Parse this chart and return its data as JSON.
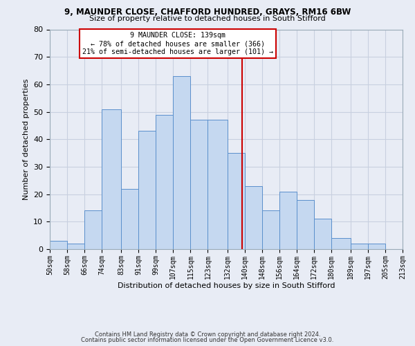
{
  "title1": "9, MAUNDER CLOSE, CHAFFORD HUNDRED, GRAYS, RM16 6BW",
  "title2": "Size of property relative to detached houses in South Stifford",
  "xlabel": "Distribution of detached houses by size in South Stifford",
  "ylabel": "Number of detached properties",
  "bin_edges": [
    50,
    58,
    66,
    74,
    83,
    91,
    99,
    107,
    115,
    123,
    132,
    140,
    148,
    156,
    164,
    172,
    180,
    189,
    197,
    205,
    213
  ],
  "bar_heights": [
    3,
    2,
    14,
    51,
    22,
    43,
    49,
    63,
    47,
    47,
    35,
    23,
    14,
    21,
    18,
    11,
    4,
    2,
    2,
    0
  ],
  "bar_color": "#c5d8f0",
  "bar_edge_color": "#5a8fcc",
  "vline_x": 139,
  "vline_color": "#cc0000",
  "annotation_text": "9 MAUNDER CLOSE: 139sqm\n← 78% of detached houses are smaller (366)\n21% of semi-detached houses are larger (101) →",
  "annotation_box_facecolor": "#ffffff",
  "annotation_box_edgecolor": "#cc0000",
  "ylim": [
    0,
    80
  ],
  "yticks": [
    0,
    10,
    20,
    30,
    40,
    50,
    60,
    70,
    80
  ],
  "grid_color": "#c8d0e0",
  "background_color": "#e8ecf5",
  "footer1": "Contains HM Land Registry data © Crown copyright and database right 2024.",
  "footer2": "Contains public sector information licensed under the Open Government Licence v3.0."
}
